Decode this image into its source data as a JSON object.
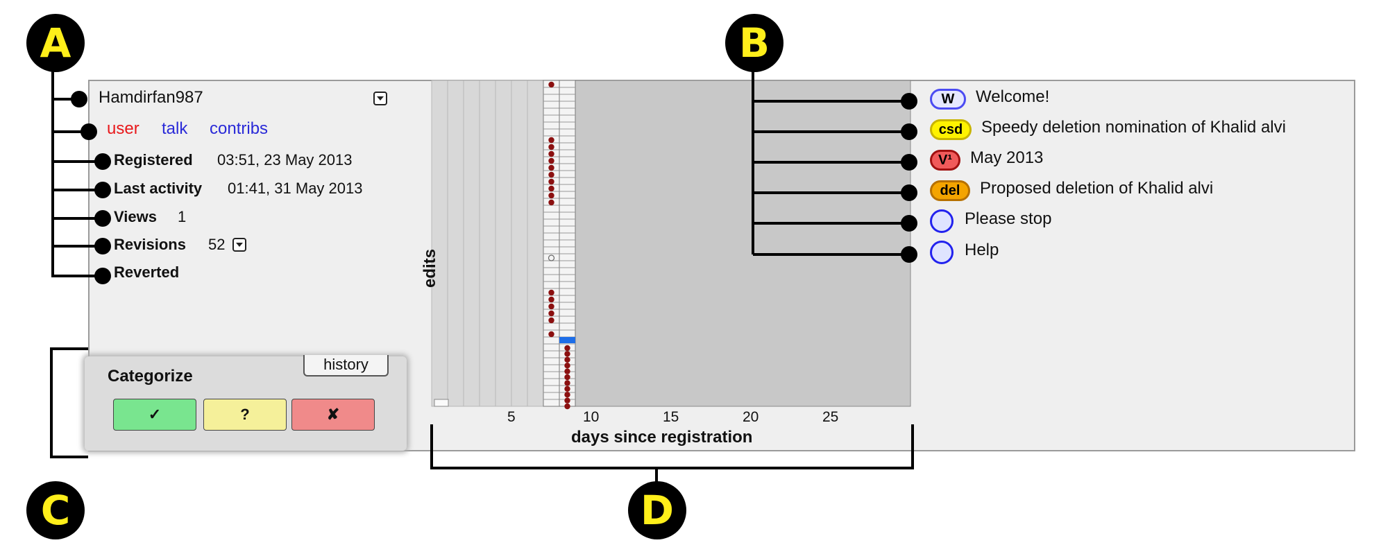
{
  "user": {
    "username": "Hamdirfan987",
    "links": {
      "user": "user",
      "talk": "talk",
      "contribs": "contribs"
    },
    "registered_label": "Registered",
    "registered_value": "03:51, 23 May 2013",
    "last_activity_label": "Last activity",
    "last_activity_value": "01:41, 31 May 2013",
    "views_label": "Views",
    "views_value": "1",
    "revisions_label": "Revisions",
    "revisions_value": "52",
    "reverted_label": "Reverted"
  },
  "categorize": {
    "title": "Categorize",
    "history_label": "history",
    "good_label": "✓",
    "unsure_label": "?",
    "bad_label": "✘"
  },
  "talk_notices": [
    {
      "badge": "W",
      "text": "Welcome!",
      "badge_color": "#e6e8ff",
      "border_color": "#4b4bf2"
    },
    {
      "badge": "csd",
      "text": "Speedy deletion nomination of Khalid alvi",
      "badge_color": "#fff200",
      "border_color": "#c8b400"
    },
    {
      "badge": "V¹",
      "text": "May 2013",
      "badge_color": "#f05a5a",
      "border_color": "#a01010"
    },
    {
      "badge": "del",
      "text": "Proposed deletion of Khalid alvi",
      "badge_color": "#f4a400",
      "border_color": "#b67000"
    },
    {
      "badge": "",
      "text": "Please stop",
      "badge_color": "#dfe4ff",
      "border_color": "#2222ee"
    },
    {
      "badge": "",
      "text": "Help",
      "badge_color": "#dfe4ff",
      "border_color": "#2222ee"
    }
  ],
  "section_labels": {
    "a": "A",
    "b": "B",
    "c": "C",
    "d": "D"
  },
  "chart_data": {
    "type": "scatter",
    "xlabel": "days since registration",
    "ylabel": "edits",
    "xticks": [
      5,
      10,
      15,
      20,
      25
    ],
    "xlim": [
      0,
      30
    ],
    "day7_edit_markers": 22,
    "day8_edit_markers": 11,
    "day7_open_markers": 1,
    "blue_marker_day": 8
  },
  "colors": {
    "panel_bg": "#efefef",
    "chart_bg": "#c8c8c8",
    "marker": "#8b1010",
    "blue_marker": "#1e6ee8",
    "good_btn": "#79e58f",
    "unsure_btn": "#f5f09a",
    "bad_btn": "#f08a8a"
  }
}
